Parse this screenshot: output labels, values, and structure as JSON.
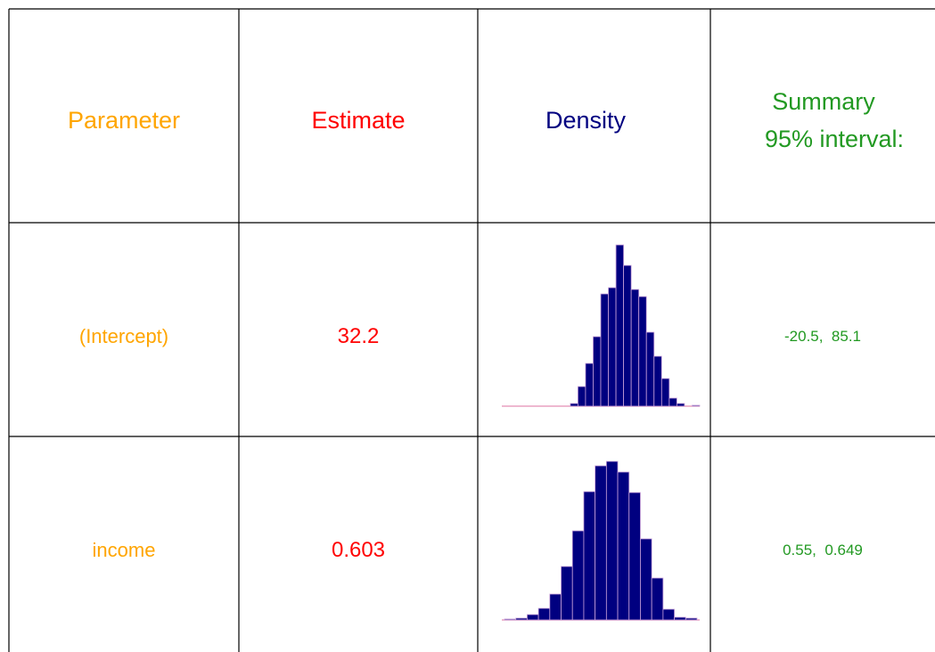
{
  "header": {
    "parameter": "Parameter",
    "estimate": "Estimate",
    "density": "Density",
    "summary": [
      "Summary",
      "95% interval:"
    ]
  },
  "rows": [
    {
      "parameter": "(Intercept)",
      "estimate": "32.2",
      "interval": "-20.5,  85.1",
      "density": [
        0,
        0,
        0,
        0,
        0,
        0,
        0,
        0,
        0,
        3,
        22,
        48,
        78,
        126,
        133,
        181,
        158,
        131,
        123,
        83,
        56,
        31,
        9,
        3,
        0,
        1
      ]
    },
    {
      "parameter": "income",
      "estimate": "0.603",
      "interval": "0.55,  0.649",
      "density": [
        1,
        2,
        6,
        13,
        29,
        60,
        100,
        144,
        173,
        178,
        166,
        143,
        91,
        47,
        12,
        3,
        2
      ]
    }
  ]
}
